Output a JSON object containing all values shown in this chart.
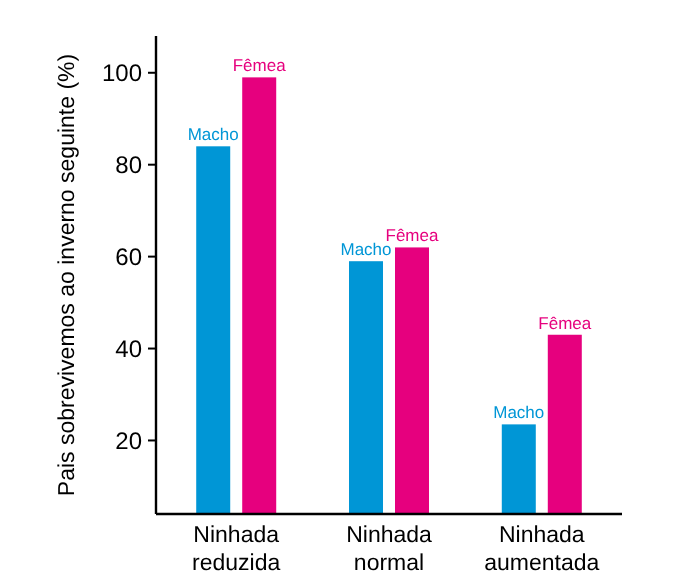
{
  "chart_data": {
    "type": "bar",
    "ylabel": "Pais sobrevivemos ao inverno seguinte (%)",
    "categories": [
      "Ninhada\nreduzida",
      "Ninhada\nnormal",
      "Ninhada\naumentada"
    ],
    "series": [
      {
        "name": "Macho",
        "color": "#0096d6",
        "values": [
          84,
          59,
          23.5
        ]
      },
      {
        "name": "Fêmea",
        "color": "#e6007e",
        "values": [
          99,
          62,
          43
        ]
      }
    ],
    "ylim": [
      4,
      108
    ],
    "yticks": [
      20,
      40,
      60,
      80,
      100
    ],
    "grid": false
  }
}
